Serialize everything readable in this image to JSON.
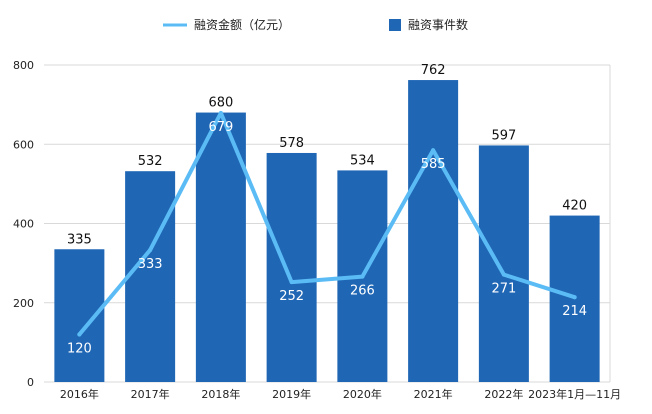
{
  "chart_data": {
    "type": "bar",
    "categories": [
      "2016年",
      "2017年",
      "2018年",
      "2019年",
      "2020年",
      "2021年",
      "2022年",
      "2023年1月—11月"
    ],
    "series": [
      {
        "name": "融资事件数",
        "type": "bar",
        "values": [
          335,
          532,
          680,
          578,
          534,
          762,
          597,
          420
        ],
        "color": "#1f66b5"
      },
      {
        "name": "融资金额（亿元）",
        "type": "line",
        "values": [
          120,
          333,
          679,
          252,
          266,
          585,
          271,
          214
        ],
        "color": "#5bbcf5"
      }
    ],
    "ylim": [
      0,
      800
    ],
    "yticks": [
      0,
      200,
      400,
      600,
      800
    ],
    "grid": true,
    "legend_position": "top-center",
    "title": "",
    "xlabel": "",
    "ylabel": ""
  }
}
